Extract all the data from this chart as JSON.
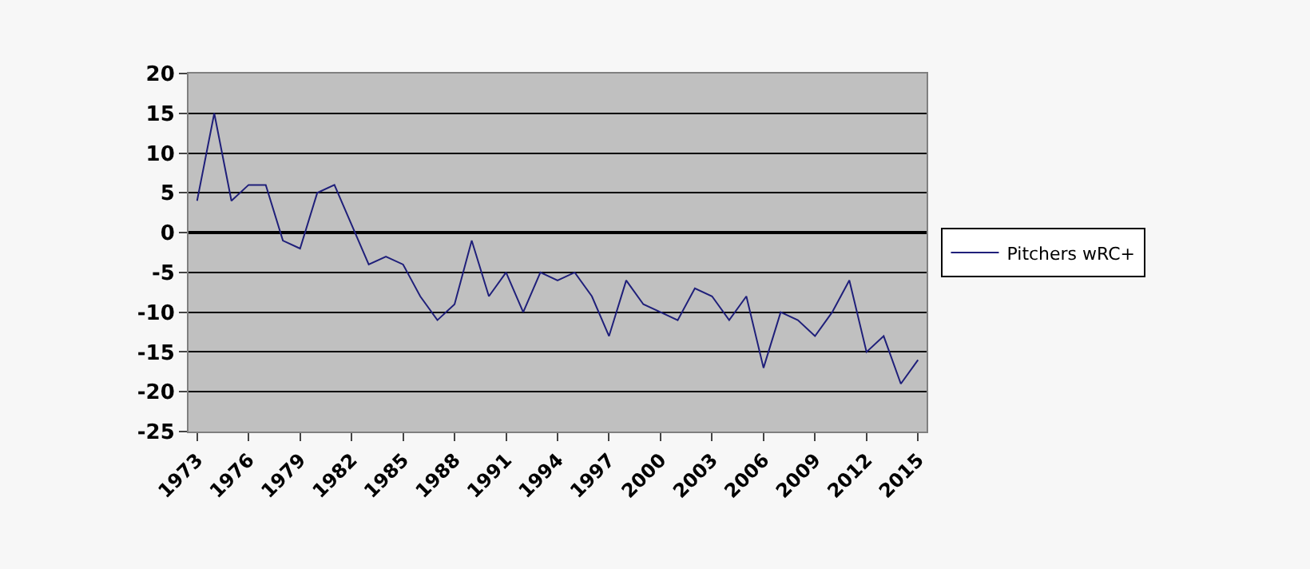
{
  "chart_data": {
    "type": "line",
    "categories": [
      "1973",
      null,
      null,
      "1976",
      null,
      null,
      "1979",
      null,
      null,
      "1982",
      null,
      null,
      "1985",
      null,
      null,
      "1988",
      null,
      null,
      "1991",
      null,
      null,
      "1994",
      null,
      null,
      "1997",
      null,
      null,
      "2000",
      null,
      null,
      "2003",
      null,
      null,
      "2006",
      null,
      null,
      "2009",
      null,
      null,
      "2012",
      null,
      null,
      "2015"
    ],
    "series": [
      {
        "name": "Pitchers wRC+",
        "color": "#1f1f7a",
        "values": [
          4,
          15,
          4,
          6,
          6,
          -1,
          -2,
          5,
          6,
          1,
          -4,
          -3,
          -4,
          -8,
          -11,
          -9,
          -1,
          -8,
          -5,
          -10,
          -5,
          -6,
          -5,
          -8,
          -13,
          -6,
          -9,
          -10,
          -11,
          -7,
          -8,
          -11,
          -8,
          -17,
          -10,
          -11,
          -13,
          -10,
          -6,
          -15,
          -13,
          -19,
          -16
        ]
      }
    ],
    "ylim": [
      -25,
      20
    ],
    "yticks": [
      -25,
      -20,
      -15,
      -10,
      -5,
      0,
      5,
      10,
      15,
      20
    ],
    "grid": "y",
    "legend": "right",
    "marker": "none",
    "line_style": "solid"
  }
}
